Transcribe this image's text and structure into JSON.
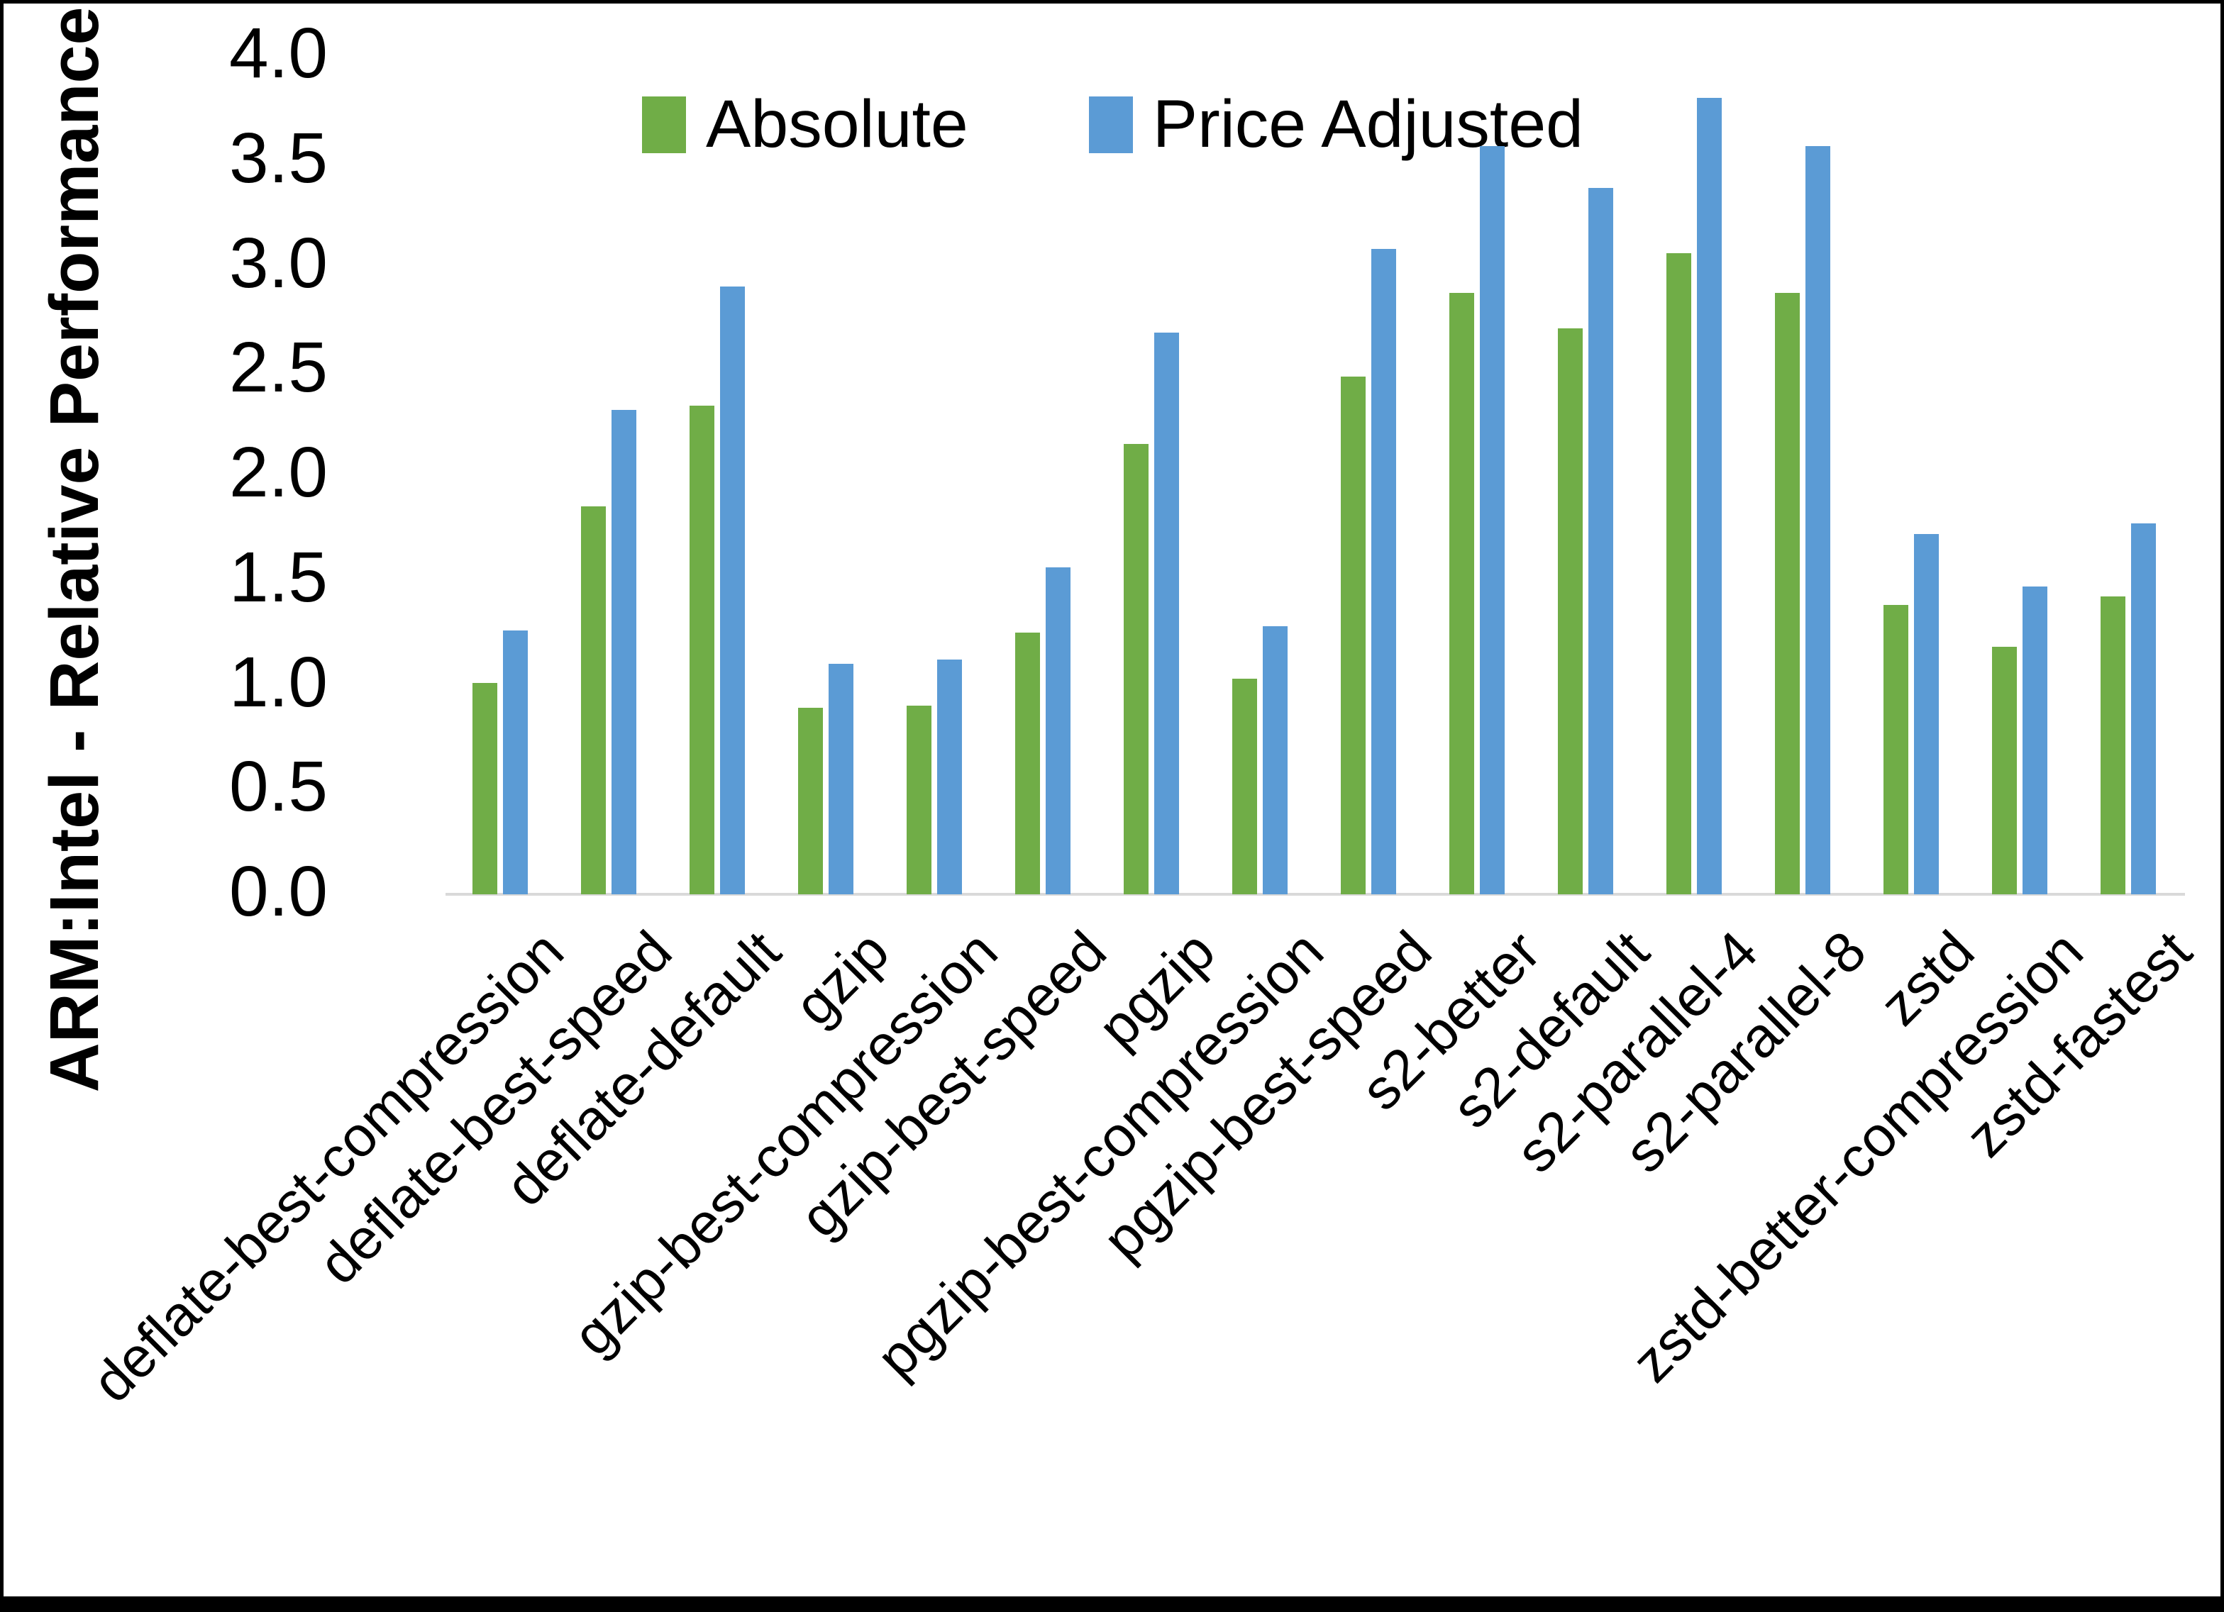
{
  "chart_data": {
    "type": "bar",
    "title": "",
    "xlabel": "",
    "ylabel": "ARM:Intel - Relative Performance",
    "ylim": [
      0.0,
      4.0
    ],
    "ytick_step": 0.5,
    "yticks": [
      "0.0",
      "0.5",
      "1.0",
      "1.5",
      "2.0",
      "2.5",
      "3.0",
      "3.5",
      "4.0"
    ],
    "grid": false,
    "legend_position": "top-center",
    "axis_line_color": "#d9d9d9",
    "categories": [
      "deflate-best-compression",
      "deflate-best-speed",
      "deflate-default",
      "gzip",
      "gzip-best-compression",
      "gzip-best-speed",
      "pgzip",
      "pgzip-best-compression",
      "pgzip-best-speed",
      "s2-better",
      "s2-default",
      "s2-parallel-4",
      "s2-parallel-8",
      "zstd",
      "zstd-better-compression",
      "zstd-fastest"
    ],
    "series": [
      {
        "name": "Absolute",
        "color": "#70AD47",
        "values": [
          1.01,
          1.85,
          2.33,
          0.89,
          0.9,
          1.25,
          2.15,
          1.03,
          2.47,
          2.87,
          2.7,
          3.06,
          2.87,
          1.38,
          1.18,
          1.42
        ]
      },
      {
        "name": "Price Adjusted",
        "color": "#5B9BD5",
        "values": [
          1.26,
          2.31,
          2.9,
          1.1,
          1.12,
          1.56,
          2.68,
          1.28,
          3.08,
          3.57,
          3.37,
          3.8,
          3.57,
          1.72,
          1.47,
          1.77
        ]
      }
    ]
  }
}
